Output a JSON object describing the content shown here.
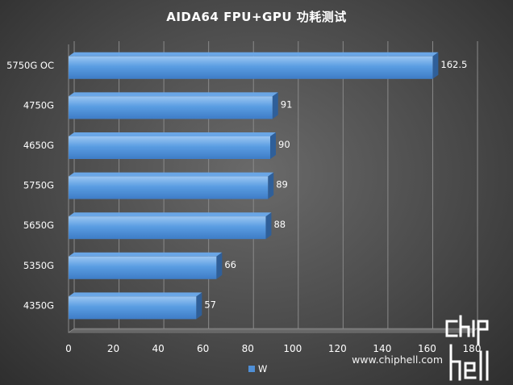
{
  "chart_data": {
    "type": "bar",
    "orientation": "horizontal",
    "title": "AIDA64 FPU+GPU 功耗测试",
    "categories": [
      "5750G OC",
      "4750G",
      "4650G",
      "5750G",
      "5650G",
      "5350G",
      "4350G"
    ],
    "series": [
      {
        "name": "W",
        "values": [
          162.5,
          91,
          90,
          89,
          88,
          66,
          57
        ],
        "color": "#4f8fd6"
      }
    ],
    "xlim": [
      0,
      180
    ],
    "xticks": [
      0,
      20,
      40,
      60,
      80,
      100,
      120,
      140,
      160,
      180
    ],
    "data_labels": [
      "162.5",
      "91",
      "90",
      "89",
      "88",
      "66",
      "57"
    ],
    "grid": true,
    "legend": "bottom-center"
  },
  "watermark": {
    "url": "www.chiphell.com"
  }
}
